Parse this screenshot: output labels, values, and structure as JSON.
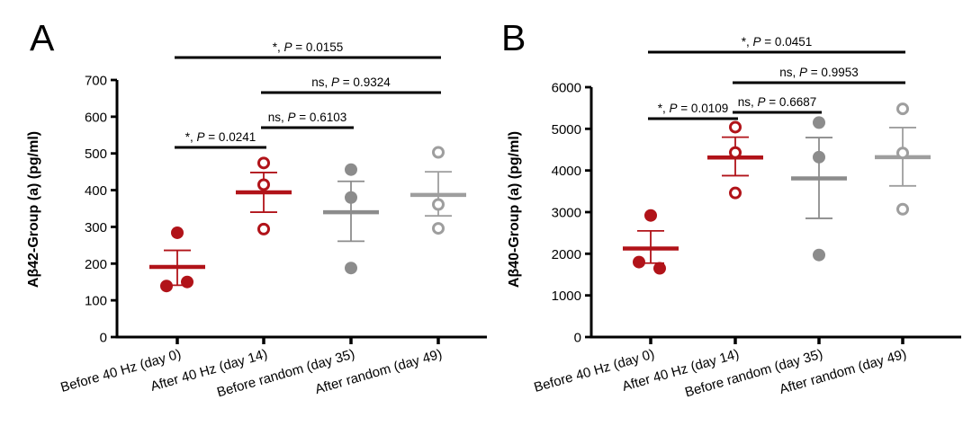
{
  "figure": {
    "panels": [
      {
        "letter": "A"
      },
      {
        "letter": "B"
      }
    ]
  },
  "colors": {
    "red": "#B11319",
    "gray": "#8C8C8C",
    "gray_light": "#9E9E9E",
    "black": "#000000",
    "background": "#FFFFFF"
  },
  "chart_data": [
    {
      "type": "scatter",
      "panel": "A",
      "title": "",
      "xlabel": "",
      "ylabel": "Aβ42-Group (a) (pg/ml)",
      "ylim": [
        0,
        700
      ],
      "yticks": [
        0,
        100,
        200,
        300,
        400,
        500,
        600,
        700
      ],
      "grid": false,
      "legend": false,
      "categories": [
        "Before 40 Hz (day 0)",
        "After 40 Hz (day 14)",
        "Before random (day 35)",
        "After random (day 49)"
      ],
      "series": [
        {
          "name": "Before 40 Hz (day 0)",
          "marker": "filled",
          "color": "red",
          "values": [
            284,
            139,
            150
          ],
          "mean": 191,
          "sem": [
            141,
            236
          ]
        },
        {
          "name": "After 40 Hz (day 14)",
          "marker": "open",
          "color": "red",
          "values": [
            474,
            415,
            294
          ],
          "mean": 394,
          "sem": [
            340,
            448
          ]
        },
        {
          "name": "Before random (day 35)",
          "marker": "filled",
          "color": "gray",
          "values": [
            456,
            380,
            188
          ],
          "mean": 340,
          "sem": [
            261,
            424
          ]
        },
        {
          "name": "After random (day 49)",
          "marker": "open",
          "color": "gray_light",
          "values": [
            503,
            361,
            296
          ],
          "mean": 387,
          "sem": [
            330,
            450
          ]
        }
      ],
      "comparisons": [
        {
          "groups": [
            1,
            2
          ],
          "label": "*, P = 0.0241"
        },
        {
          "groups": [
            2,
            3
          ],
          "label": "ns, P = 0.6103"
        },
        {
          "groups": [
            2,
            4
          ],
          "label": "ns, P = 0.9324"
        },
        {
          "groups": [
            1,
            4
          ],
          "label": "*, P = 0.0155"
        }
      ]
    },
    {
      "type": "scatter",
      "panel": "B",
      "title": "",
      "xlabel": "",
      "ylabel": "Aβ40-Group (a) (pg/ml)",
      "ylim": [
        0,
        6000
      ],
      "yticks": [
        0,
        1000,
        2000,
        3000,
        4000,
        5000,
        6000
      ],
      "grid": false,
      "legend": false,
      "categories": [
        "Before 40 Hz (day 0)",
        "After 40 Hz (day 14)",
        "Before random (day 35)",
        "After random (day 49)"
      ],
      "series": [
        {
          "name": "Before 40 Hz (day 0)",
          "marker": "filled",
          "color": "red",
          "values": [
            2920,
            1800,
            1650
          ],
          "mean": 2125,
          "sem": [
            1775,
            2550
          ]
        },
        {
          "name": "After 40 Hz (day 14)",
          "marker": "open",
          "color": "red",
          "values": [
            5040,
            4430,
            3460
          ],
          "mean": 4310,
          "sem": [
            3875,
            4800
          ]
        },
        {
          "name": "Before random (day 35)",
          "marker": "filled",
          "color": "gray",
          "values": [
            5150,
            4320,
            1970
          ],
          "mean": 3810,
          "sem": [
            2850,
            4790
          ]
        },
        {
          "name": "After random (day 49)",
          "marker": "open",
          "color": "gray_light",
          "values": [
            5480,
            4420,
            3070
          ],
          "mean": 4320,
          "sem": [
            3630,
            5030
          ]
        }
      ],
      "comparisons": [
        {
          "groups": [
            1,
            2
          ],
          "label": "*, P = 0.0109"
        },
        {
          "groups": [
            2,
            3
          ],
          "label": "ns, P = 0.6687"
        },
        {
          "groups": [
            2,
            4
          ],
          "label": "ns, P = 0.9953"
        },
        {
          "groups": [
            1,
            4
          ],
          "label": "*, P = 0.0451"
        }
      ]
    }
  ]
}
